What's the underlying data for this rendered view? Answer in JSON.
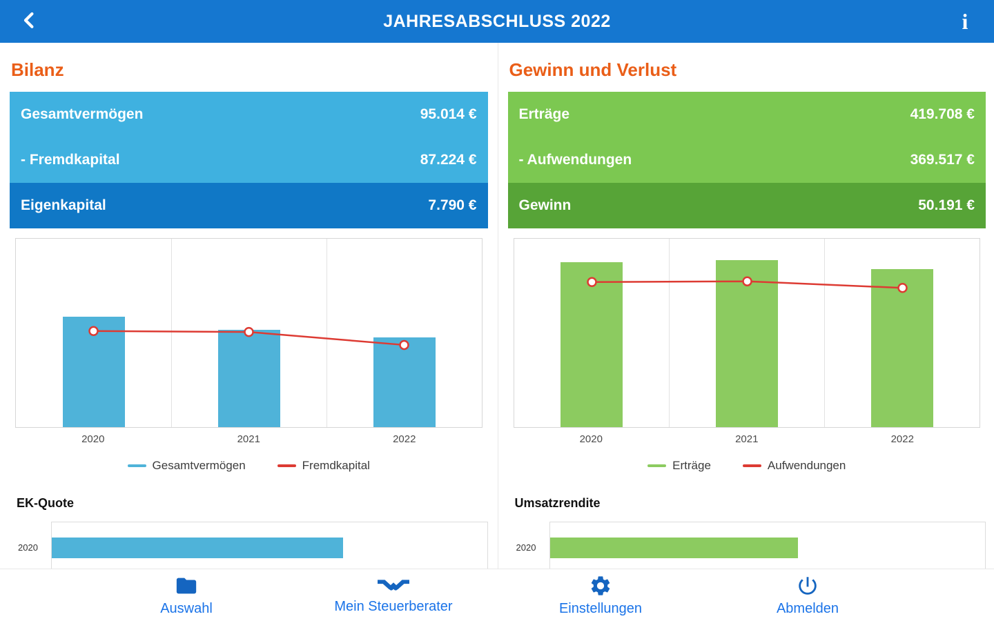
{
  "topbar": {
    "title": "JAHRESABSCHLUSS 2022",
    "back_icon": "chevron-left-icon",
    "info_icon": "info-icon",
    "info_glyph": "i"
  },
  "sections": {
    "bilanz": {
      "heading": "Bilanz",
      "table": {
        "rows": [
          {
            "label": "Gesamtvermögen",
            "value": "95.014 €"
          },
          {
            "label": "- Fremdkapital",
            "value": "87.224 €"
          },
          {
            "label": "Eigenkapital",
            "value": "7.790 €"
          }
        ]
      },
      "subchart_heading": "EK-Quote"
    },
    "guv": {
      "heading": "Gewinn und Verlust",
      "table": {
        "rows": [
          {
            "label": "Erträge",
            "value": "419.708 €"
          },
          {
            "label": "- Aufwendungen",
            "value": "369.517 €"
          },
          {
            "label": "Gewinn",
            "value": "50.191 €"
          }
        ]
      },
      "subchart_heading": "Umsatzrendite"
    }
  },
  "bottom_nav": {
    "items": [
      {
        "label": "Auswahl",
        "icon": "folder-icon"
      },
      {
        "label": "Mein Steuerberater",
        "icon": "handshake-icon"
      },
      {
        "label": "Einstellungen",
        "icon": "gear-icon"
      },
      {
        "label": "Abmelden",
        "icon": "power-icon"
      }
    ]
  },
  "colors": {
    "topbar_blue": "#1577D0",
    "heading_orange": "#EA5E18",
    "row_light_blue": "#3FB1E0",
    "row_dark_blue": "#1078C6",
    "row_light_green": "#7CC851",
    "row_dark_green": "#57A437",
    "bar_blue": "#4FB3D9",
    "bar_green": "#8CCB60",
    "line_red": "#DD3B33",
    "nav_icon_blue": "#1565C0",
    "nav_label_blue": "#1A73E8"
  },
  "chart_data": [
    {
      "id": "bilanz-chart",
      "type": "bar",
      "subtype": "bar+line",
      "title": "",
      "xlabel": "",
      "ylabel": "",
      "categories": [
        "2020",
        "2021",
        "2022"
      ],
      "series": [
        {
          "name": "Gesamtvermögen",
          "type": "bar",
          "color": "#4FB3D9",
          "values": [
            117000,
            103000,
            95014
          ]
        },
        {
          "name": "Fremdkapital",
          "type": "line",
          "color": "#DD3B33",
          "values": [
            102000,
            101000,
            87224
          ]
        }
      ],
      "ylim": [
        0,
        200000
      ],
      "grid": true,
      "legend_position": "bottom"
    },
    {
      "id": "guv-chart",
      "type": "bar",
      "subtype": "bar+line",
      "title": "",
      "xlabel": "",
      "ylabel": "",
      "categories": [
        "2020",
        "2021",
        "2022"
      ],
      "series": [
        {
          "name": "Erträge",
          "type": "bar",
          "color": "#8CCB60",
          "values": [
            437000,
            443000,
            419708
          ]
        },
        {
          "name": "Aufwendungen",
          "type": "line",
          "color": "#DD3B33",
          "values": [
            385000,
            387000,
            369517
          ]
        }
      ],
      "ylim": [
        0,
        500000
      ],
      "grid": true,
      "legend_position": "bottom"
    },
    {
      "id": "ek-quote-chart",
      "type": "bar",
      "subtype": "bar-horizontal",
      "title": "EK-Quote",
      "categories": [
        "2020"
      ],
      "series": [
        {
          "name": "EK-Quote",
          "type": "bar",
          "color": "#4FB3D9",
          "values": [
            67
          ]
        }
      ],
      "xlim": [
        0,
        100
      ],
      "grid": false,
      "legend_position": "none"
    },
    {
      "id": "umsatzrendite-chart",
      "type": "bar",
      "subtype": "bar-horizontal",
      "title": "Umsatzrendite",
      "categories": [
        "2020"
      ],
      "series": [
        {
          "name": "Umsatzrendite",
          "type": "bar",
          "color": "#8CCB60",
          "values": [
            57
          ]
        }
      ],
      "xlim": [
        0,
        100
      ],
      "grid": false,
      "legend_position": "none"
    }
  ]
}
